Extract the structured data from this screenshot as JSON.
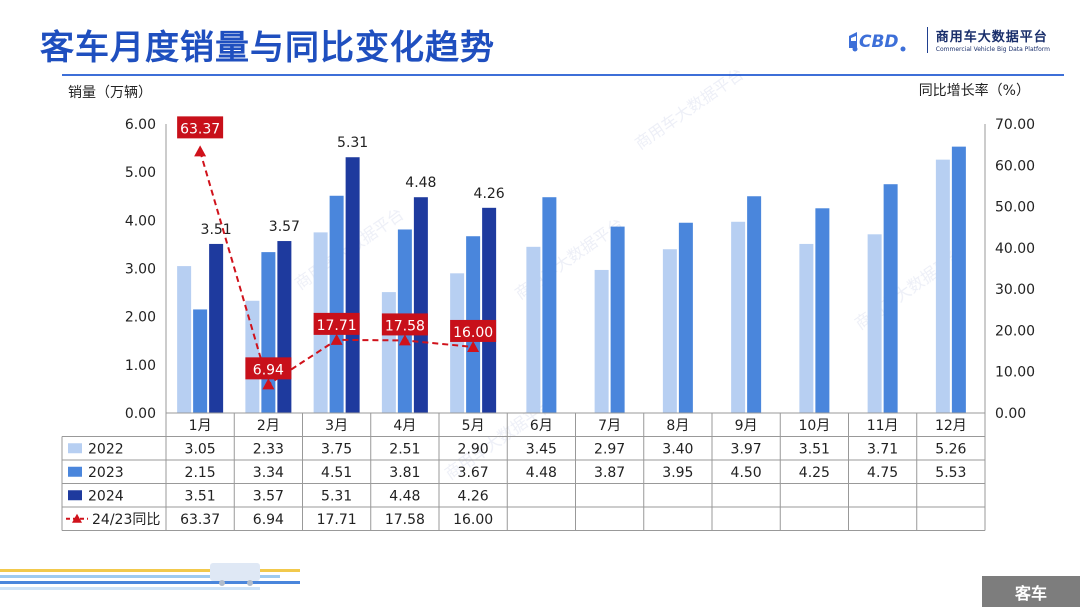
{
  "header": {
    "title": "客车月度销量与同比变化趋势",
    "brand_name": "商用车大数据平台",
    "brand_sub": "Commercial Vehicle Big Data Platform",
    "brand_logo_text": "CBD"
  },
  "axes": {
    "left_title": "销量（万辆）",
    "right_title": "同比增长率（%）",
    "left_ticks": [
      "0.00",
      "1.00",
      "2.00",
      "3.00",
      "4.00",
      "5.00",
      "6.00"
    ],
    "right_ticks": [
      "0.00",
      "10.00",
      "20.00",
      "30.00",
      "40.00",
      "50.00",
      "60.00",
      "70.00"
    ]
  },
  "footer": {
    "tag": "客车"
  },
  "chart_data": {
    "type": "bar",
    "title": "客车月度销量与同比变化趋势",
    "ylabel": "销量（万辆）",
    "y2label": "同比增长率（%）",
    "ylim": [
      0,
      6
    ],
    "y2lim": [
      0,
      70
    ],
    "grid": false,
    "legend": "table-left",
    "categories": [
      "1月",
      "2月",
      "3月",
      "4月",
      "5月",
      "6月",
      "7月",
      "8月",
      "9月",
      "10月",
      "11月",
      "12月"
    ],
    "series": [
      {
        "name": "2022",
        "type": "bar",
        "color": "#b7cff2",
        "values": [
          3.05,
          2.33,
          3.75,
          2.51,
          2.9,
          3.45,
          2.97,
          3.4,
          3.97,
          3.51,
          3.71,
          5.26
        ],
        "table": [
          "3.05",
          "2.33",
          "3.75",
          "2.51",
          "2.90",
          "3.45",
          "2.97",
          "3.40",
          "3.97",
          "3.51",
          "3.71",
          "5.26"
        ]
      },
      {
        "name": "2023",
        "type": "bar",
        "color": "#4a86dc",
        "values": [
          2.15,
          3.34,
          4.51,
          3.81,
          3.67,
          4.48,
          3.87,
          3.95,
          4.5,
          4.25,
          4.75,
          5.53
        ],
        "table": [
          "2.15",
          "3.34",
          "4.51",
          "3.81",
          "3.67",
          "4.48",
          "3.87",
          "3.95",
          "4.50",
          "4.25",
          "4.75",
          "5.53"
        ]
      },
      {
        "name": "2024",
        "type": "bar",
        "color": "#1e3a9e",
        "values": [
          3.51,
          3.57,
          5.31,
          4.48,
          4.26,
          null,
          null,
          null,
          null,
          null,
          null,
          null
        ],
        "table": [
          "3.51",
          "3.57",
          "5.31",
          "4.48",
          "4.26",
          "",
          "",
          "",
          "",
          "",
          "",
          ""
        ],
        "labels": [
          "3.51",
          "3.57",
          "5.31",
          "4.48",
          "4.26"
        ]
      },
      {
        "name": "24/23同比",
        "type": "line",
        "axis": "right",
        "color": "#d0121b",
        "values": [
          63.37,
          6.94,
          17.71,
          17.58,
          16.0,
          null,
          null,
          null,
          null,
          null,
          null,
          null
        ],
        "table": [
          "63.37",
          "6.94",
          "17.71",
          "17.58",
          "16.00",
          "",
          "",
          "",
          "",
          "",
          "",
          ""
        ],
        "labels": [
          "63.37",
          "6.94",
          "17.71",
          "17.58",
          "16.00"
        ]
      }
    ]
  }
}
